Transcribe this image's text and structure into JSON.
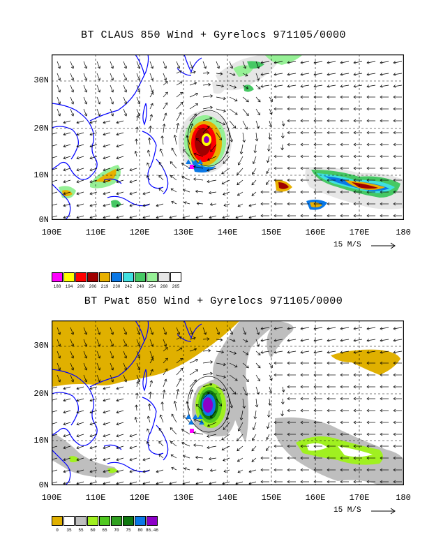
{
  "panel1": {
    "title": "BT CLAUS 850 Wind + Gyrelocs 971105/0000",
    "lat_labels": [
      "30N",
      "20N",
      "10N",
      "0N"
    ],
    "lon_labels": [
      "100E",
      "110E",
      "120E",
      "130E",
      "140E",
      "150E",
      "160E",
      "170E",
      "180"
    ],
    "scale_label": "15 M/S",
    "legend": [
      {
        "color": "#ff00ff",
        "label": "188"
      },
      {
        "color": "#ffff00",
        "label": "194"
      },
      {
        "color": "#ff0000",
        "label": "200"
      },
      {
        "color": "#a00000",
        "label": "206"
      },
      {
        "color": "#e8b000",
        "label": "219"
      },
      {
        "color": "#0a78e6",
        "label": "230"
      },
      {
        "color": "#40e0e0",
        "label": "242"
      },
      {
        "color": "#46c864",
        "label": "248"
      },
      {
        "color": "#96f096",
        "label": "254"
      },
      {
        "color": "#e6e6e6",
        "label": "260"
      },
      {
        "color": "#ffffff",
        "label": "265"
      }
    ]
  },
  "panel2": {
    "title": "BT Pwat 850 Wind + Gyrelocs 971105/0000",
    "lat_labels": [
      "30N",
      "20N",
      "10N",
      "0N"
    ],
    "lon_labels": [
      "100E",
      "110E",
      "120E",
      "130E",
      "140E",
      "150E",
      "160E",
      "170E",
      "180"
    ],
    "scale_label": "15 M/S",
    "legend": [
      {
        "color": "#e0b000",
        "label": "0"
      },
      {
        "color": "#ffffff",
        "label": "35"
      },
      {
        "color": "#bebebe",
        "label": "55"
      },
      {
        "color": "#a0f020",
        "label": "60"
      },
      {
        "color": "#50c820",
        "label": "65"
      },
      {
        "color": "#30a020",
        "label": "70"
      },
      {
        "color": "#107810",
        "label": "75"
      },
      {
        "color": "#0a78e6",
        "label": "80"
      },
      {
        "color": "#8c00c8",
        "label": "86.46"
      }
    ]
  }
}
